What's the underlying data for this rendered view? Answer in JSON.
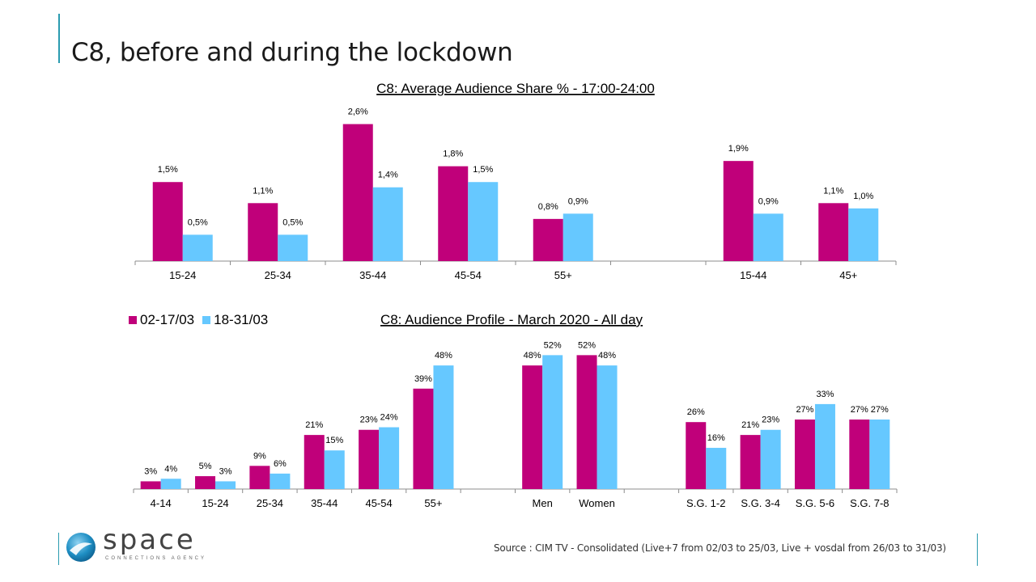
{
  "page": {
    "title": "C8, before and during the lockdown",
    "source": "Source : CIM TV - Consolidated (Live+7 from 02/03 to 25/03, Live + vosdal from 26/03 to 31/03)",
    "logo": {
      "word": "space",
      "tagline": "CONNECTIONS AGENCY"
    }
  },
  "colors": {
    "period1": "#C0007A",
    "period2": "#66C8FF",
    "accent": "#2a9bb0"
  },
  "legend": {
    "period1": "02-17/03",
    "period2": "18-31/03"
  },
  "chart_data": [
    {
      "type": "bar",
      "title": "C8: Average Audience Share % - 17:00-24:00",
      "categories": [
        "15-24",
        "25-34",
        "35-44",
        "45-54",
        "55+",
        "",
        "15-44",
        "45+"
      ],
      "series": [
        {
          "name": "02-17/03",
          "values": [
            1.5,
            1.1,
            2.6,
            1.8,
            0.8,
            null,
            1.9,
            1.1
          ],
          "labels": [
            "1,5%",
            "1,1%",
            "2,6%",
            "1,8%",
            "0,8%",
            "",
            "1,9%",
            "1,1%"
          ]
        },
        {
          "name": "18-31/03",
          "values": [
            0.5,
            0.5,
            1.4,
            1.5,
            0.9,
            null,
            0.9,
            1.0
          ],
          "labels": [
            "0,5%",
            "0,5%",
            "1,4%",
            "1,5%",
            "0,9%",
            "",
            "0,9%",
            "1,0%"
          ]
        }
      ],
      "ylim": [
        0,
        2.7
      ],
      "grid": false
    },
    {
      "type": "bar",
      "title": "C8: Audience Profile - March 2020 - All day",
      "categories": [
        "4-14",
        "15-24",
        "25-34",
        "35-44",
        "45-54",
        "55+",
        "",
        "Men",
        "Women",
        "",
        "S.G. 1-2",
        "S.G. 3-4",
        "S.G. 5-6",
        "S.G. 7-8"
      ],
      "series": [
        {
          "name": "02-17/03",
          "values": [
            3,
            5,
            9,
            21,
            23,
            39,
            null,
            48,
            52,
            null,
            26,
            21,
            27,
            27
          ],
          "labels": [
            "3%",
            "5%",
            "9%",
            "21%",
            "23%",
            "39%",
            "",
            "48%",
            "52%",
            "",
            "26%",
            "21%",
            "27%",
            "27%"
          ]
        },
        {
          "name": "18-31/03",
          "values": [
            4,
            3,
            6,
            15,
            24,
            48,
            null,
            52,
            48,
            null,
            16,
            23,
            33,
            27
          ],
          "labels": [
            "4%",
            "3%",
            "6%",
            "15%",
            "24%",
            "48%",
            "",
            "52%",
            "48%",
            "",
            "16%",
            "23%",
            "33%",
            "27%"
          ]
        }
      ],
      "ylim": [
        0,
        54
      ],
      "grid": false,
      "legend": "top-left"
    }
  ]
}
